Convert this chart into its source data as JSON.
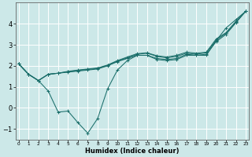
{
  "xlabel": "Humidex (Indice chaleur)",
  "ylabel": "",
  "bg_color": "#cce8e8",
  "line_color": "#1a6e6a",
  "grid_color": "#ffffff",
  "xlim": [
    -0.3,
    23.3
  ],
  "ylim": [
    -1.5,
    5.0
  ],
  "xticks": [
    0,
    1,
    2,
    3,
    4,
    5,
    6,
    7,
    8,
    9,
    10,
    11,
    12,
    13,
    14,
    15,
    16,
    17,
    18,
    19,
    20,
    21,
    22,
    23
  ],
  "yticks": [
    -1,
    0,
    1,
    2,
    3,
    4
  ],
  "series_low": [
    2.1,
    1.6,
    1.3,
    0.8,
    -0.2,
    -0.15,
    -0.7,
    -1.2,
    -0.5,
    0.9,
    1.8,
    2.25,
    2.5,
    2.5,
    2.3,
    2.25,
    2.3,
    2.5,
    2.5,
    2.5,
    3.2,
    3.8,
    4.2,
    4.6
  ],
  "series_a": [
    2.1,
    1.6,
    1.3,
    1.6,
    1.65,
    1.7,
    1.75,
    1.8,
    1.85,
    2.0,
    2.2,
    2.35,
    2.5,
    2.5,
    2.35,
    2.3,
    2.35,
    2.55,
    2.5,
    2.55,
    3.15,
    3.5,
    4.05,
    4.6
  ],
  "series_b": [
    2.1,
    1.6,
    1.3,
    1.6,
    1.65,
    1.72,
    1.78,
    1.83,
    1.88,
    2.02,
    2.22,
    2.38,
    2.55,
    2.6,
    2.45,
    2.38,
    2.45,
    2.6,
    2.55,
    2.62,
    3.22,
    3.55,
    4.08,
    4.6
  ],
  "series_c": [
    2.1,
    1.6,
    1.3,
    1.6,
    1.65,
    1.74,
    1.8,
    1.85,
    1.9,
    2.04,
    2.25,
    2.42,
    2.58,
    2.62,
    2.48,
    2.42,
    2.5,
    2.65,
    2.6,
    2.65,
    3.28,
    3.58,
    4.12,
    4.6
  ]
}
